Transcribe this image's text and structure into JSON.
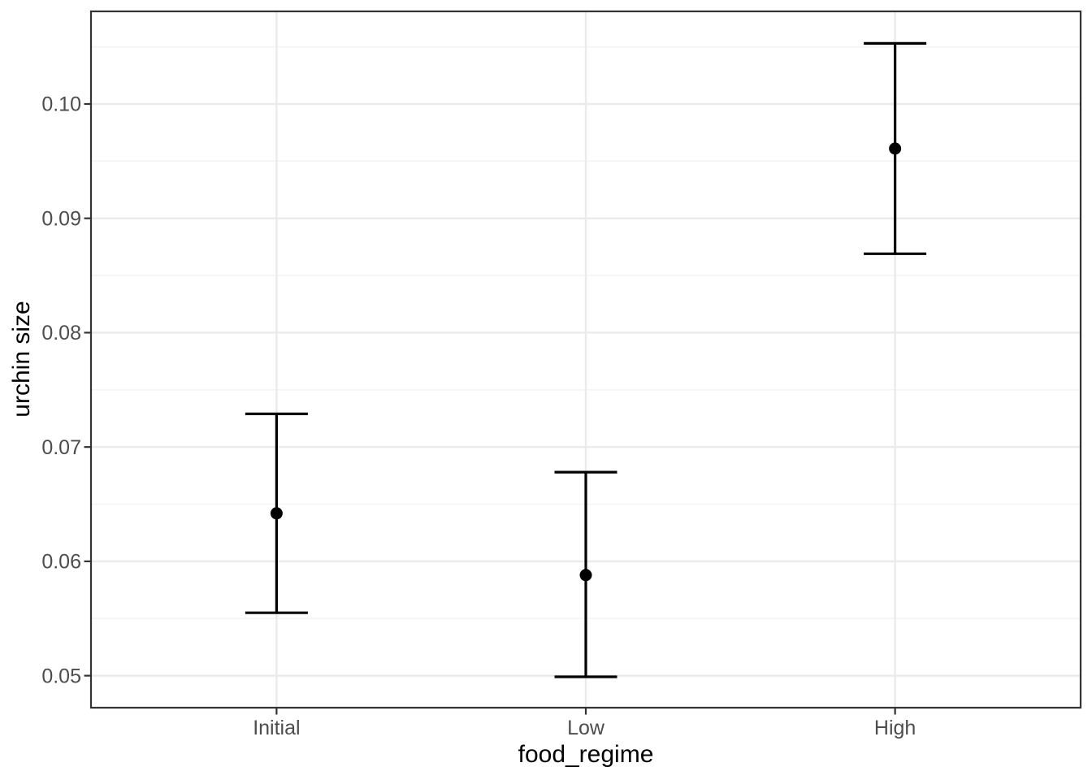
{
  "chart_data": {
    "type": "pointrange",
    "title": "",
    "xlabel": "food_regime",
    "ylabel": "urchin size",
    "categories": [
      "Initial",
      "Low",
      "High"
    ],
    "points": [
      {
        "category": "Initial",
        "mean": 0.0642,
        "lower": 0.0555,
        "upper": 0.0729
      },
      {
        "category": "Low",
        "mean": 0.0588,
        "lower": 0.0499,
        "upper": 0.0678
      },
      {
        "category": "High",
        "mean": 0.0961,
        "lower": 0.0869,
        "upper": 0.1053
      }
    ],
    "ylim": [
      0.0472,
      0.1081
    ],
    "y_major_ticks": [
      {
        "value": 0.05,
        "label": "0.05"
      },
      {
        "value": 0.06,
        "label": "0.06"
      },
      {
        "value": 0.07,
        "label": "0.07"
      },
      {
        "value": 0.08,
        "label": "0.08"
      },
      {
        "value": 0.09,
        "label": "0.09"
      },
      {
        "value": 0.1,
        "label": "0.10"
      }
    ],
    "y_minor_ticks": [
      0.055,
      0.065,
      0.075,
      0.085,
      0.095,
      0.105
    ],
    "grid": "major+minor horizontal, major vertical at categories",
    "legend_position": "none",
    "colors": {
      "background": "#FFFFFF",
      "panel_background": "#FFFFFF",
      "panel_border": "#333333",
      "grid_major": "#EBEBEB",
      "grid_minor": "#F2F2F2",
      "point": "#000000",
      "errorbar": "#000000",
      "tick_mark": "#333333",
      "tick_label": "#4D4D4D",
      "axis_title": "#000000"
    }
  }
}
